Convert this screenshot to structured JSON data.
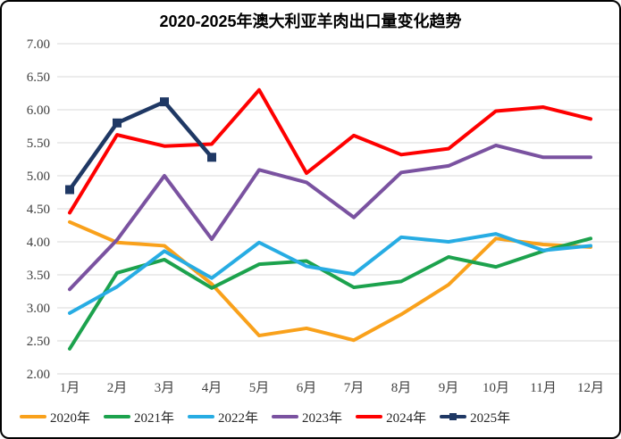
{
  "title": "2020-2025年澳大利亚羊肉出口量变化趋势",
  "chart_data": {
    "type": "line",
    "title": "2020-2025年澳大利亚羊肉出口量变化趋势",
    "categories": [
      "1月",
      "2月",
      "3月",
      "4月",
      "5月",
      "6月",
      "7月",
      "8月",
      "9月",
      "10月",
      "11月",
      "12月"
    ],
    "series": [
      {
        "name": "2020年",
        "color": "#F9A11B",
        "marker": "none",
        "values": [
          4.3,
          3.99,
          3.94,
          3.36,
          2.58,
          2.69,
          2.51,
          2.9,
          3.35,
          4.05,
          3.96,
          3.92
        ]
      },
      {
        "name": "2021年",
        "color": "#1CA24D",
        "marker": "none",
        "values": [
          2.38,
          3.53,
          3.73,
          3.3,
          3.66,
          3.71,
          3.31,
          3.4,
          3.77,
          3.62,
          3.86,
          4.05
        ]
      },
      {
        "name": "2022年",
        "color": "#27ACE3",
        "marker": "none",
        "values": [
          2.92,
          3.32,
          3.86,
          3.45,
          3.99,
          3.63,
          3.51,
          4.07,
          4.0,
          4.12,
          3.87,
          3.94
        ]
      },
      {
        "name": "2023年",
        "color": "#7A52A0",
        "marker": "none",
        "values": [
          3.28,
          4.03,
          5.0,
          4.04,
          5.09,
          4.9,
          4.37,
          5.05,
          5.15,
          5.46,
          5.28,
          5.28
        ]
      },
      {
        "name": "2024年",
        "color": "#FE0000",
        "marker": "none",
        "values": [
          4.44,
          5.62,
          5.45,
          5.48,
          6.3,
          5.04,
          5.61,
          5.32,
          5.41,
          5.98,
          6.04,
          5.86
        ]
      },
      {
        "name": "2025年",
        "color": "#1F3864",
        "marker": "square",
        "values": [
          4.79,
          5.8,
          6.12,
          5.28
        ]
      }
    ],
    "ylim": [
      2.0,
      7.0
    ],
    "ytick_step": 0.5,
    "ytick_labels": [
      "7.00",
      "6.50",
      "6.00",
      "5.50",
      "5.00",
      "4.50",
      "4.00",
      "3.50",
      "3.00",
      "2.50",
      "2.00"
    ],
    "grid": true,
    "gridline_color": "#D9D9D9",
    "axis_label_color": "#404040",
    "legend_position": "bottom",
    "xlabel": "",
    "ylabel": ""
  }
}
